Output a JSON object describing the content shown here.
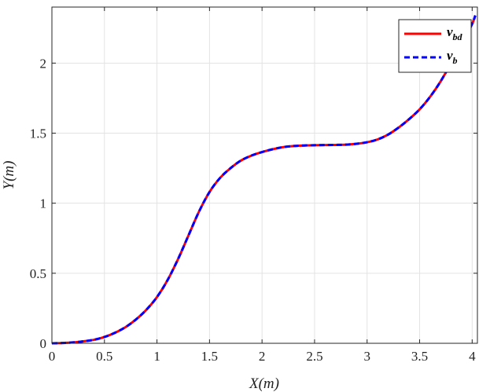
{
  "chart_data": {
    "type": "line",
    "xlabel": "X(m)",
    "ylabel": "Y(m)",
    "xlim": [
      0,
      4.05
    ],
    "ylim": [
      0,
      2.4
    ],
    "xticks": [
      "0",
      "0.5",
      "1",
      "1.5",
      "2",
      "2.5",
      "3",
      "3.5",
      "4"
    ],
    "yticks": [
      "0",
      "0.5",
      "1",
      "1.5",
      "2"
    ],
    "grid": true,
    "legend_position": "top-right",
    "series": [
      {
        "name": "v_bd",
        "label_main": "v",
        "label_sub": "bd",
        "color": "#ff0000",
        "style": "solid",
        "x": [
          0,
          0.1,
          0.2,
          0.3,
          0.4,
          0.5,
          0.6,
          0.7,
          0.8,
          0.9,
          1.0,
          1.1,
          1.2,
          1.3,
          1.4,
          1.5,
          1.6,
          1.7,
          1.8,
          1.9,
          2.0,
          2.1,
          2.2,
          2.3,
          2.4,
          2.5,
          2.6,
          2.7,
          2.8,
          2.9,
          3.0,
          3.1,
          3.2,
          3.3,
          3.4,
          3.5,
          3.6,
          3.7,
          3.8,
          3.9,
          4.0,
          4.03
        ],
        "y": [
          0,
          0.002,
          0.006,
          0.014,
          0.025,
          0.045,
          0.075,
          0.115,
          0.17,
          0.24,
          0.33,
          0.45,
          0.6,
          0.77,
          0.94,
          1.08,
          1.18,
          1.25,
          1.305,
          1.34,
          1.365,
          1.385,
          1.4,
          1.408,
          1.412,
          1.414,
          1.415,
          1.416,
          1.418,
          1.424,
          1.435,
          1.455,
          1.49,
          1.54,
          1.6,
          1.67,
          1.76,
          1.87,
          2.0,
          2.13,
          2.28,
          2.34
        ]
      },
      {
        "name": "v_b",
        "label_main": "v",
        "label_sub": "b",
        "color": "#0000ff",
        "style": "dashed",
        "x": [
          0,
          0.1,
          0.2,
          0.3,
          0.4,
          0.5,
          0.6,
          0.7,
          0.8,
          0.9,
          1.0,
          1.1,
          1.2,
          1.3,
          1.4,
          1.5,
          1.6,
          1.7,
          1.8,
          1.9,
          2.0,
          2.1,
          2.2,
          2.3,
          2.4,
          2.5,
          2.6,
          2.7,
          2.8,
          2.9,
          3.0,
          3.1,
          3.2,
          3.3,
          3.4,
          3.5,
          3.6,
          3.7,
          3.8,
          3.9,
          4.0,
          4.03
        ],
        "y": [
          0,
          0.002,
          0.006,
          0.014,
          0.025,
          0.045,
          0.075,
          0.115,
          0.17,
          0.24,
          0.33,
          0.45,
          0.6,
          0.77,
          0.94,
          1.08,
          1.18,
          1.25,
          1.305,
          1.34,
          1.365,
          1.385,
          1.4,
          1.408,
          1.412,
          1.414,
          1.415,
          1.416,
          1.418,
          1.424,
          1.435,
          1.455,
          1.49,
          1.54,
          1.6,
          1.67,
          1.76,
          1.87,
          2.0,
          2.13,
          2.28,
          2.34
        ]
      }
    ]
  }
}
